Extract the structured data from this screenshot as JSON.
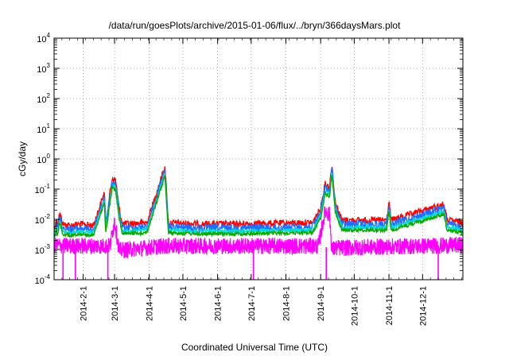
{
  "chart_data": {
    "type": "line",
    "title": "/data/run/goesPlots/archive/2015-01-06/flux/../bryn/366daysMars.plot",
    "xlabel": "Coordinated Universal Time (UTC)",
    "ylabel": "cGy/day",
    "y_scale": "log",
    "ylim": [
      0.0001,
      10000
    ],
    "y_ticks": [
      {
        "base": "10",
        "exp": "-4"
      },
      {
        "base": "10",
        "exp": "-3"
      },
      {
        "base": "10",
        "exp": "-2"
      },
      {
        "base": "10",
        "exp": "-1"
      },
      {
        "base": "10",
        "exp": "0"
      },
      {
        "base": "10",
        "exp": "1"
      },
      {
        "base": "10",
        "exp": "2"
      },
      {
        "base": "10",
        "exp": "3"
      },
      {
        "base": "10",
        "exp": "4"
      }
    ],
    "xlim": [
      "2014-01-06",
      "2015-01-06"
    ],
    "x_ticks": [
      "2014-2-1",
      "2014-3-1",
      "2014-4-1",
      "2014-5-1",
      "2014-6-1",
      "2014-7-1",
      "2014-8-1",
      "2014-9-1",
      "2014-10-1",
      "2014-11-1",
      "2014-12-1"
    ],
    "grid": true,
    "series_colors": [
      "#ff0000",
      "#00aa00",
      "#1e6fff",
      "#ff00ff",
      "#00dddd"
    ],
    "envelopes": {
      "top_series": [
        [
          "2014-01-06",
          0.006
        ],
        [
          "2014-01-08",
          0.012
        ],
        [
          "2014-01-09",
          0.009
        ],
        [
          "2014-01-11",
          0.02
        ],
        [
          "2014-01-14",
          0.009
        ],
        [
          "2014-01-20",
          0.008
        ],
        [
          "2014-01-28",
          0.009
        ],
        [
          "2014-02-10",
          0.008
        ],
        [
          "2014-02-20",
          0.1
        ],
        [
          "2014-02-21",
          0.009
        ],
        [
          "2014-02-25",
          0.1
        ],
        [
          "2014-02-27",
          0.3
        ],
        [
          "2014-03-02",
          0.25
        ],
        [
          "2014-03-05",
          0.03
        ],
        [
          "2014-03-08",
          0.009
        ],
        [
          "2014-03-30",
          0.01
        ],
        [
          "2014-04-15",
          0.75
        ],
        [
          "2014-04-18",
          0.01
        ],
        [
          "2014-05-15",
          0.009
        ],
        [
          "2014-06-20",
          0.009
        ],
        [
          "2014-08-25",
          0.01
        ],
        [
          "2014-09-01",
          0.03
        ],
        [
          "2014-09-05",
          0.2
        ],
        [
          "2014-09-09",
          0.15
        ],
        [
          "2014-09-11",
          0.9
        ],
        [
          "2014-09-14",
          0.05
        ],
        [
          "2014-09-20",
          0.012
        ],
        [
          "2014-10-30",
          0.012
        ],
        [
          "2014-11-01",
          0.05
        ],
        [
          "2014-11-03",
          0.012
        ],
        [
          "2014-12-20",
          0.04
        ],
        [
          "2014-12-23",
          0.012
        ],
        [
          "2015-01-06",
          0.01
        ]
      ],
      "low_series": [
        [
          "2014-01-06",
          0.0015
        ],
        [
          "2014-01-20",
          0.0014
        ],
        [
          "2014-02-25",
          0.0014
        ],
        [
          "2014-03-01",
          0.01
        ],
        [
          "2014-03-05",
          0.001
        ],
        [
          "2014-04-15",
          0.0014
        ],
        [
          "2014-08-30",
          0.0014
        ],
        [
          "2014-09-05",
          0.02
        ],
        [
          "2014-09-09",
          0.015
        ],
        [
          "2014-09-11",
          0.001
        ],
        [
          "2014-09-14",
          0.0012
        ],
        [
          "2015-01-06",
          0.0015
        ]
      ]
    }
  }
}
